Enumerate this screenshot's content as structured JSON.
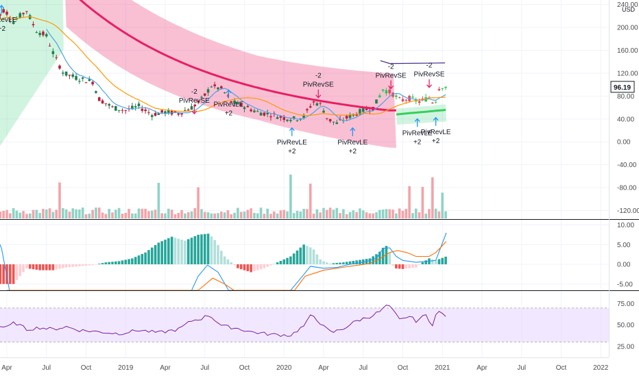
{
  "chart_data": {
    "type": "candlestick",
    "title": "",
    "currency": "USD",
    "last_price": "96.19",
    "x_axis": {
      "labels": [
        "Apr",
        "Jul",
        "Oct",
        "2019",
        "Apr",
        "Jul",
        "Oct",
        "2020",
        "Apr",
        "Jul",
        "Oct",
        "2021",
        "Apr",
        "Jul",
        "Oct",
        "2022"
      ]
    },
    "price_pane": {
      "y_ticks": [
        "240.00",
        "200.00",
        "160.00",
        "120.00",
        "80.00",
        "40.00",
        "0.00",
        "-40.00",
        "-80.00",
        "-120.00"
      ],
      "y_tick_values": [
        240,
        200,
        160,
        120,
        80,
        40,
        0,
        -40,
        -80,
        -120
      ],
      "ylim": [
        -135,
        248
      ],
      "grid": true,
      "bands": [
        {
          "name": "",
          "color": "#f7a1bf",
          "period": "2018-08 to 2020-10"
        },
        {
          "name": "",
          "color": "#a5e8c6",
          "period": "2018-03 to 2018-08, 2020-10 to 2021-01"
        }
      ]
    },
    "signals": [
      {
        "label": "PivRevLE",
        "count": "+2",
        "direction": "long"
      },
      {
        "label": "PivRevSE",
        "count": "-2",
        "direction": "short"
      },
      {
        "label": "PivRevLE",
        "count": "+2",
        "direction": "long"
      },
      {
        "label": "PivRevLE",
        "count": "+2",
        "direction": "long"
      },
      {
        "label": "PivRevSE",
        "count": "-2",
        "direction": "short"
      },
      {
        "label": "PivRevLE",
        "count": "+2",
        "direction": "long"
      },
      {
        "label": "PivRevSE",
        "count": "-2",
        "direction": "short"
      },
      {
        "label": "PivRevLE",
        "count": "+2",
        "direction": "long"
      },
      {
        "label": "PivRevSE",
        "count": "-2",
        "direction": "short"
      },
      {
        "label": "PivRevLE",
        "count": "+2",
        "direction": "long"
      }
    ],
    "macd_pane": {
      "y_ticks": [
        "10.00",
        "5.00",
        "0.00",
        "-5.00"
      ],
      "y_tick_values": [
        10,
        5,
        0,
        -5
      ],
      "ylim": [
        -6.6,
        11.3
      ]
    },
    "rsi_pane": {
      "y_ticks": [
        "75.00",
        "50.00",
        "25.00"
      ],
      "y_tick_values": [
        75,
        50,
        25
      ],
      "ylim": [
        12,
        90
      ],
      "band": [
        30,
        70
      ]
    },
    "colors": {
      "up": "#26a69a",
      "down": "#ef5350",
      "sma": "#4fa3e0",
      "ema": "#ff9800",
      "regression": "#e91e63",
      "rsi": "#7b1fa2",
      "rsi_band": "#e6d6ff",
      "macd": "#2196f3",
      "signal_line": "#ff6d00",
      "long_arrow": "#2196f3",
      "short_arrow": "#e91e63",
      "price_tag": "#131722"
    }
  }
}
